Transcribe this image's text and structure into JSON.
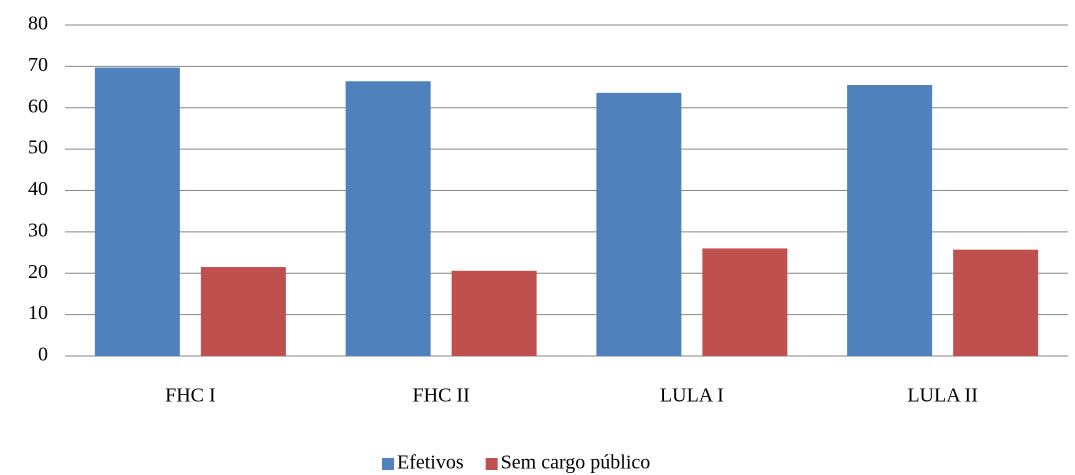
{
  "chart_data": {
    "type": "bar",
    "categories": [
      "FHC I",
      "FHC II",
      "LULA I",
      "LULA II"
    ],
    "series": [
      {
        "name": "Efetivos",
        "color": "#4f81bd",
        "values": [
          69.7,
          66.4,
          63.6,
          65.5
        ]
      },
      {
        "name": "Sem cargo público",
        "color": "#c0504d",
        "values": [
          21.5,
          20.6,
          26.0,
          25.7
        ]
      }
    ],
    "ylim": [
      0,
      80
    ],
    "yticks": [
      0,
      10,
      20,
      30,
      40,
      50,
      60,
      70,
      80
    ],
    "grid": true,
    "legend": "bottom"
  }
}
